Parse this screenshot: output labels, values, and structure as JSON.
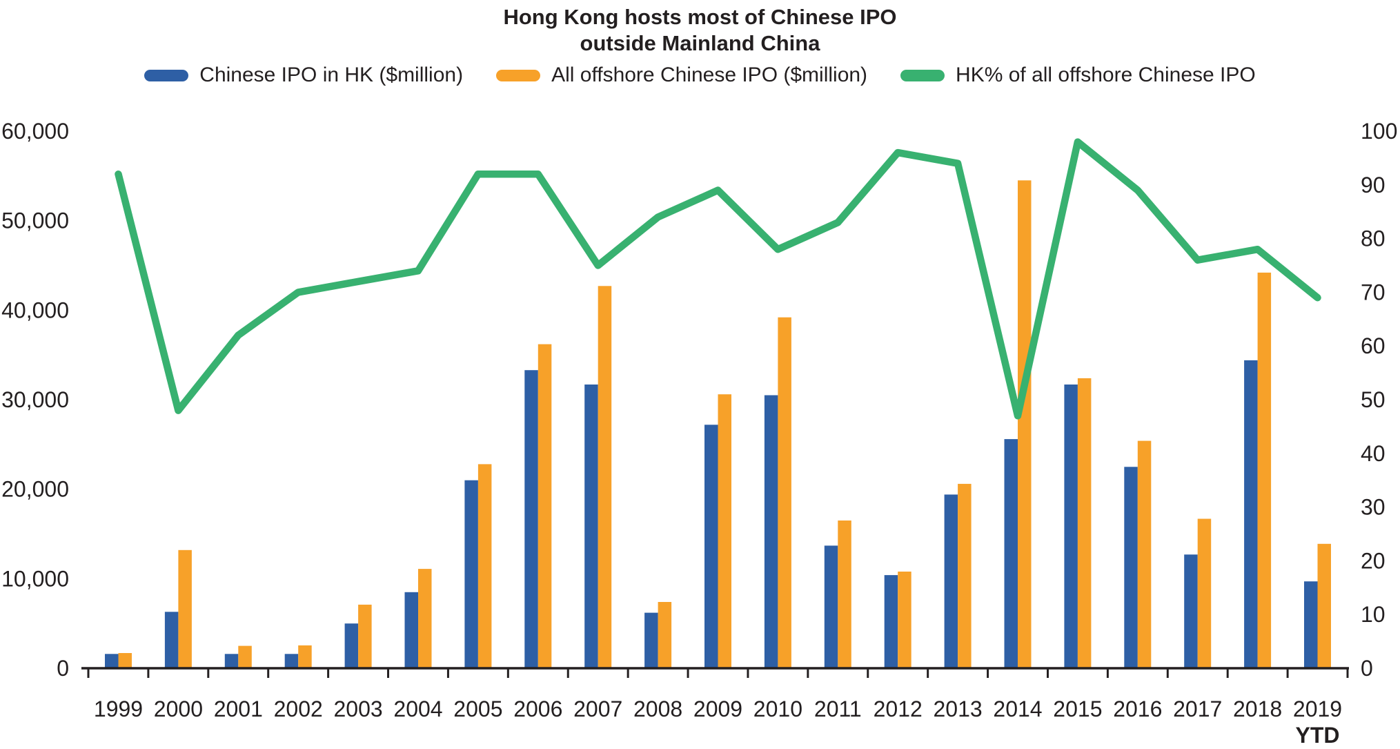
{
  "title": {
    "line1": "Hong Kong hosts most of Chinese IPO",
    "line2": "outside Mainland China"
  },
  "legend": [
    {
      "label": "Chinese IPO in HK ($million)",
      "color": "#2E5FA5"
    },
    {
      "label": "All offshore Chinese IPO ($million)",
      "color": "#F7A129"
    },
    {
      "label": "HK% of all offshore Chinese IPO",
      "color": "#38B170"
    }
  ],
  "colors": {
    "bar_hk": "#2E5FA5",
    "bar_offshore": "#F7A129",
    "line_pct": "#38B170",
    "axis_and_text": "#231f20",
    "background": "#ffffff"
  },
  "chart_data": {
    "type": "bar+line",
    "title": "Hong Kong hosts most of Chinese IPO outside Mainland China",
    "categories": [
      "1999",
      "2000",
      "2001",
      "2002",
      "2003",
      "2004",
      "2005",
      "2006",
      "2007",
      "2008",
      "2009",
      "2010",
      "2011",
      "2012",
      "2013",
      "2014",
      "2015",
      "2016",
      "2017",
      "2018",
      "2019"
    ],
    "x_footnote": "YTD",
    "legend_position": "top",
    "grid": false,
    "left_axis": {
      "min": 0,
      "max": 60000,
      "tick_step": 10000,
      "tick_labels": [
        "0",
        "10,000",
        "20,000",
        "30,000",
        "40,000",
        "50,000",
        "60,000"
      ]
    },
    "right_axis": {
      "min": 0,
      "max": 100,
      "tick_step": 10,
      "tick_labels": [
        "0",
        "10",
        "20",
        "30",
        "40",
        "50",
        "60",
        "70",
        "80",
        "90",
        "100"
      ]
    },
    "series": [
      {
        "name": "Chinese IPO in HK ($million)",
        "type": "bar",
        "axis": "left",
        "color": "#2E5FA5",
        "values": [
          1600,
          6300,
          1600,
          1600,
          5000,
          8500,
          21000,
          33300,
          31700,
          6200,
          27200,
          30500,
          13700,
          10400,
          19400,
          25600,
          31700,
          22500,
          12700,
          34400,
          9700
        ]
      },
      {
        "name": "All offshore Chinese IPO ($million)",
        "type": "bar",
        "axis": "left",
        "color": "#F7A129",
        "values": [
          1700,
          13200,
          2500,
          2550,
          7100,
          11100,
          22800,
          36200,
          42700,
          7400,
          30600,
          39200,
          16500,
          10800,
          20600,
          54500,
          32400,
          25400,
          16700,
          44200,
          13900
        ]
      },
      {
        "name": "HK% of all offshore Chinese IPO",
        "type": "line",
        "axis": "right",
        "color": "#38B170",
        "values": [
          92,
          48,
          62,
          70,
          72,
          74,
          92,
          92,
          75,
          84,
          89,
          78,
          83,
          96,
          94,
          47,
          98,
          89,
          76,
          78,
          69
        ]
      }
    ]
  }
}
